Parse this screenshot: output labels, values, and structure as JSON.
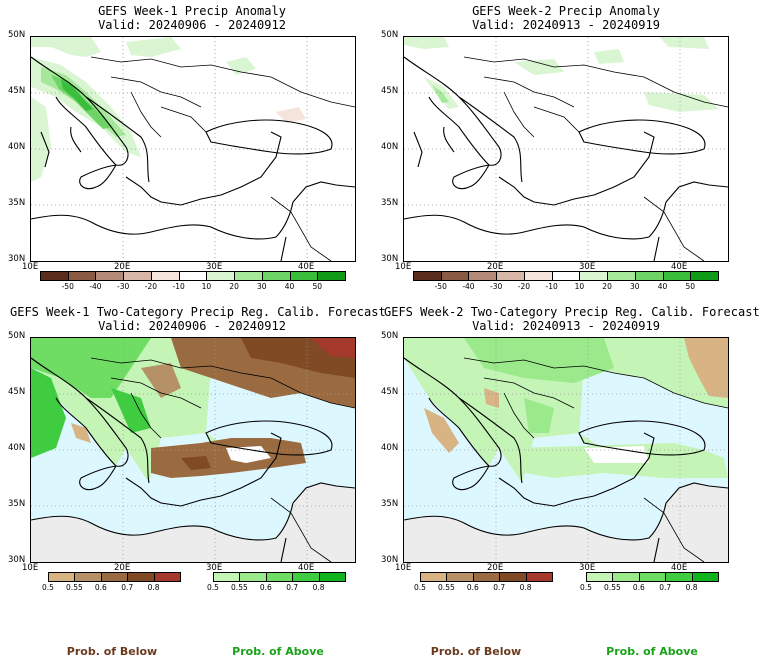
{
  "panels": [
    {
      "title": "GEFS Week-1 Precip Anomaly",
      "valid": "Valid: 20240906 - 20240912"
    },
    {
      "title": "GEFS Week-2 Precip Anomaly",
      "valid": "Valid: 20240913 - 20240919"
    },
    {
      "title": "GEFS Week-1 Two-Category Precip Reg. Calib. Forecast",
      "valid": "Valid: 20240906 - 20240912"
    },
    {
      "title": "GEFS Week-2 Two-Category Precip Reg. Calib. Forecast",
      "valid": "Valid: 20240913 - 20240919"
    }
  ],
  "axes": {
    "lat_labels": [
      "50N",
      "45N",
      "40N",
      "35N",
      "30N"
    ],
    "lon_labels": [
      "10E",
      "20E",
      "30E",
      "40E"
    ]
  },
  "anomaly_colorbar": {
    "ticks": [
      "-50",
      "-40",
      "-30",
      "-20",
      "-10",
      "10",
      "20",
      "30",
      "40",
      "50"
    ],
    "colors": [
      "#5a2d1c",
      "#8b5a45",
      "#b38a78",
      "#d8b7a8",
      "#f5e4dc",
      "#ffffff",
      "#d9f5d2",
      "#a6e89a",
      "#6ed466",
      "#39bd3b",
      "#119a18"
    ]
  },
  "prob_colorbar": {
    "below_ticks": [
      "0.5",
      "0.55",
      "0.6",
      "0.7",
      "0.8"
    ],
    "below_colors": [
      "#d8b383",
      "#b69168",
      "#9a6b40",
      "#7f4a24",
      "#a53a2c"
    ],
    "above_ticks": [
      "0.5",
      "0.55",
      "0.6",
      "0.7",
      "0.8"
    ],
    "above_colors": [
      "#c5f5b6",
      "#9ae98a",
      "#6fdc63",
      "#40cc40",
      "#10b21e"
    ]
  },
  "footer": {
    "below": "Prob. of Below",
    "above": "Prob. of Above",
    "below_color": "#6b3a1e",
    "above_color": "#1aa31a"
  },
  "map_colors": {
    "sea": "#ddf7ff",
    "nodata": "#ececec"
  }
}
